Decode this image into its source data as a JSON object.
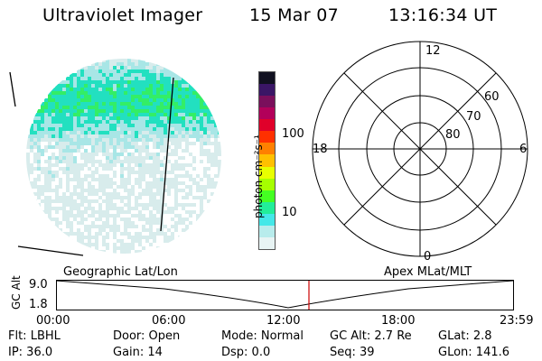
{
  "header": {
    "instrument": "Ultraviolet Imager",
    "date": "15 Mar 07",
    "time": "13:16:34 UT"
  },
  "image_panel": {
    "colormap_stops": [
      "#d8ecec",
      "#a8e6e6",
      "#22e0c0",
      "#33ee66",
      "#77ff22",
      "#e0ff00",
      "#ffb300",
      "#ff5500",
      "#e0002a",
      "#a0006a",
      "#3a1666"
    ]
  },
  "colorbar": {
    "label": "photon cm⁻²s⁻¹",
    "ticks": [
      {
        "label": "100",
        "value": 100
      },
      {
        "label": "10",
        "value": 10
      }
    ],
    "colors": [
      "#101020",
      "#3a1666",
      "#7a0f5c",
      "#b2005a",
      "#e0002a",
      "#ff3000",
      "#ff8000",
      "#ffc000",
      "#e8ff00",
      "#a6ff00",
      "#44ff22",
      "#22ee99",
      "#44e8e8",
      "#b8ecec",
      "#e8f4f4"
    ]
  },
  "polar_plot": {
    "mlt_labels": [
      {
        "label": "12",
        "position": "top"
      },
      {
        "label": "6",
        "position": "right"
      },
      {
        "label": "0",
        "position": "bottom"
      },
      {
        "label": "18",
        "position": "left"
      }
    ],
    "lat_labels": [
      {
        "label": "60",
        "lat": 60
      },
      {
        "label": "70",
        "lat": 70
      },
      {
        "label": "80",
        "lat": 80
      }
    ]
  },
  "timeline": {
    "title_left": "Geographic Lat/Lon",
    "title_right": "Apex  MLat/MLT",
    "ylabel": "GC Alt",
    "yticks": [
      "9.0",
      "1.8"
    ],
    "xticks": [
      "00:00",
      "06:00",
      "12:00",
      "18:00",
      "23:59"
    ],
    "marker_time": "13:16",
    "marker_color": "#cc0000"
  },
  "status": {
    "filter": "Flt: LBHL",
    "door": "Door: Open",
    "mode": "Mode: Normal",
    "gc_alt": "GC Alt: 2.7 Re",
    "glat": "GLat:   2.8",
    "ip": "IP: 36.0",
    "gain": "Gain: 14",
    "dsp": "Dsp:     0.0",
    "seq": "Seq: 39",
    "glon": "GLon: 141.6"
  }
}
